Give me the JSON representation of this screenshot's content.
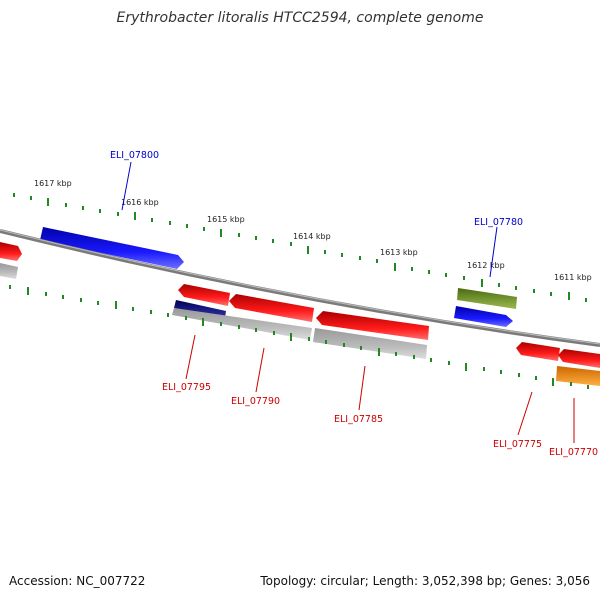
{
  "title": "Erythrobacter litoralis HTCC2594, complete genome",
  "footer": {
    "accession": "Accession: NC_007722",
    "summary": "Topology: circular; Length: 3,052,398 bp; Genes: 3,056"
  },
  "colors": {
    "forward_gene": "#0000ee",
    "reverse_gene": "#ee0000",
    "label_forward": "#0000cc",
    "label_reverse": "#cc0000",
    "tick": "#228822",
    "backbone": "#777777",
    "rna_like": "#6b8e23",
    "orange_gene": "#ff8c00",
    "gray_feature": "#bbbbbb"
  },
  "scale_labels": [
    "1617 kbp",
    "1616 kbp",
    "1615 kbp",
    "1614 kbp",
    "1613 kbp",
    "1612 kbp",
    "1611 kbp"
  ],
  "gene_labels": [
    {
      "text": "ELI_07800",
      "strand": "forward"
    },
    {
      "text": "ELI_07780",
      "strand": "forward"
    },
    {
      "text": "ELI_07795",
      "strand": "reverse"
    },
    {
      "text": "ELI_07790",
      "strand": "reverse"
    },
    {
      "text": "ELI_07785",
      "strand": "reverse"
    },
    {
      "text": "ELI_07775",
      "strand": "reverse"
    },
    {
      "text": "ELI_07770",
      "strand": "reverse"
    }
  ]
}
